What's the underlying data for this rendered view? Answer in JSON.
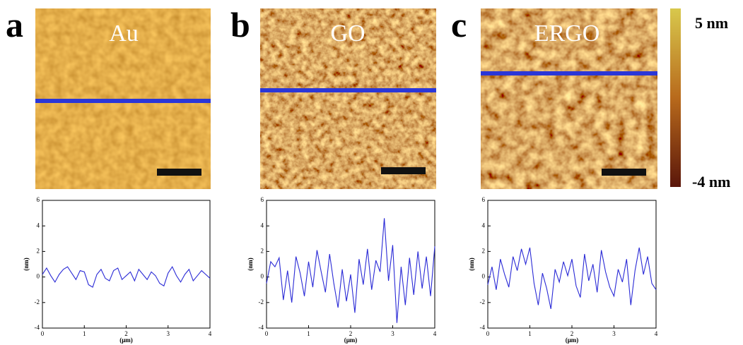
{
  "panel_labels": [
    "a",
    "b",
    "c"
  ],
  "image_labels": [
    "Au",
    "GO",
    "ERGO"
  ],
  "colorbar": {
    "max_label": "5 nm",
    "min_label": "-4 nm"
  },
  "chart_data": [
    {
      "type": "line",
      "xlabel": "(μm)",
      "ylabel": "(nm)",
      "xlim": [
        0,
        4
      ],
      "ylim": [
        -4,
        6
      ],
      "xticks": [
        0,
        1,
        2,
        3,
        4
      ],
      "yticks": [
        -4,
        -2,
        0,
        2,
        4,
        6
      ],
      "x": [
        0,
        0.1,
        0.2,
        0.3,
        0.4,
        0.5,
        0.6,
        0.7,
        0.8,
        0.9,
        1,
        1.1,
        1.2,
        1.3,
        1.4,
        1.5,
        1.6,
        1.7,
        1.8,
        1.9,
        2,
        2.1,
        2.2,
        2.3,
        2.4,
        2.5,
        2.6,
        2.7,
        2.8,
        2.9,
        3,
        3.1,
        3.2,
        3.3,
        3.4,
        3.5,
        3.6,
        3.7,
        3.8,
        3.9,
        4
      ],
      "series": [
        {
          "color": "#2a2ad6",
          "values": [
            0.2,
            0.7,
            0.1,
            -0.4,
            0.2,
            0.6,
            0.8,
            0.3,
            -0.2,
            0.5,
            0.4,
            -0.6,
            -0.8,
            0.2,
            0.6,
            -0.1,
            -0.3,
            0.5,
            0.7,
            -0.2,
            0.1,
            0.4,
            -0.3,
            0.6,
            0.2,
            -0.2,
            0.4,
            0.1,
            -0.5,
            -0.7,
            0.3,
            0.8,
            0.1,
            -0.4,
            0.2,
            0.6,
            -0.3,
            0.1,
            0.5,
            0.2,
            -0.1
          ]
        }
      ]
    },
    {
      "type": "line",
      "xlabel": "(μm)",
      "ylabel": "(nm)",
      "xlim": [
        0,
        4
      ],
      "ylim": [
        -4,
        6
      ],
      "xticks": [
        0,
        1,
        2,
        3,
        4
      ],
      "yticks": [
        -4,
        -2,
        0,
        2,
        4,
        6
      ],
      "x": [
        0,
        0.1,
        0.2,
        0.3,
        0.4,
        0.5,
        0.6,
        0.7,
        0.8,
        0.9,
        1,
        1.1,
        1.2,
        1.3,
        1.4,
        1.5,
        1.6,
        1.7,
        1.8,
        1.9,
        2,
        2.1,
        2.2,
        2.3,
        2.4,
        2.5,
        2.6,
        2.7,
        2.8,
        2.9,
        3,
        3.1,
        3.2,
        3.3,
        3.4,
        3.5,
        3.6,
        3.7,
        3.8,
        3.9,
        4
      ],
      "series": [
        {
          "color": "#2a2ad6",
          "values": [
            -0.5,
            1.2,
            0.8,
            1.5,
            -1.8,
            0.5,
            -2.0,
            1.6,
            0.3,
            -1.5,
            1.2,
            -0.8,
            2.1,
            0.4,
            -1.2,
            1.8,
            -0.5,
            -2.4,
            0.6,
            -1.9,
            0.2,
            -2.8,
            1.4,
            -0.6,
            2.2,
            -1.0,
            1.3,
            0.4,
            4.6,
            -0.3,
            2.5,
            -3.6,
            0.8,
            -2.2,
            1.5,
            -1.4,
            2.0,
            -0.9,
            1.6,
            -1.5,
            2.4
          ]
        }
      ]
    },
    {
      "type": "line",
      "xlabel": "(μm)",
      "ylabel": "(nm)",
      "xlim": [
        0,
        4
      ],
      "ylim": [
        -4,
        6
      ],
      "xticks": [
        0,
        1,
        2,
        3,
        4
      ],
      "yticks": [
        -4,
        -2,
        0,
        2,
        4,
        6
      ],
      "x": [
        0,
        0.1,
        0.2,
        0.3,
        0.4,
        0.5,
        0.6,
        0.7,
        0.8,
        0.9,
        1,
        1.1,
        1.2,
        1.3,
        1.4,
        1.5,
        1.6,
        1.7,
        1.8,
        1.9,
        2,
        2.1,
        2.2,
        2.3,
        2.4,
        2.5,
        2.6,
        2.7,
        2.8,
        2.9,
        3,
        3.1,
        3.2,
        3.3,
        3.4,
        3.5,
        3.6,
        3.7,
        3.8,
        3.9,
        4
      ],
      "series": [
        {
          "color": "#2a2ad6",
          "values": [
            -0.6,
            0.8,
            -1.0,
            1.4,
            0.2,
            -0.8,
            1.6,
            0.5,
            2.2,
            1.0,
            2.3,
            -0.5,
            -2.2,
            0.3,
            -0.9,
            -2.5,
            0.6,
            -0.4,
            1.2,
            0.1,
            1.4,
            -0.7,
            -1.6,
            1.8,
            -0.3,
            1.0,
            -1.2,
            2.1,
            0.4,
            -0.8,
            -1.5,
            0.6,
            -0.4,
            1.4,
            -2.2,
            0.5,
            2.3,
            0.2,
            1.6,
            -0.5,
            -1.0
          ]
        }
      ]
    }
  ]
}
